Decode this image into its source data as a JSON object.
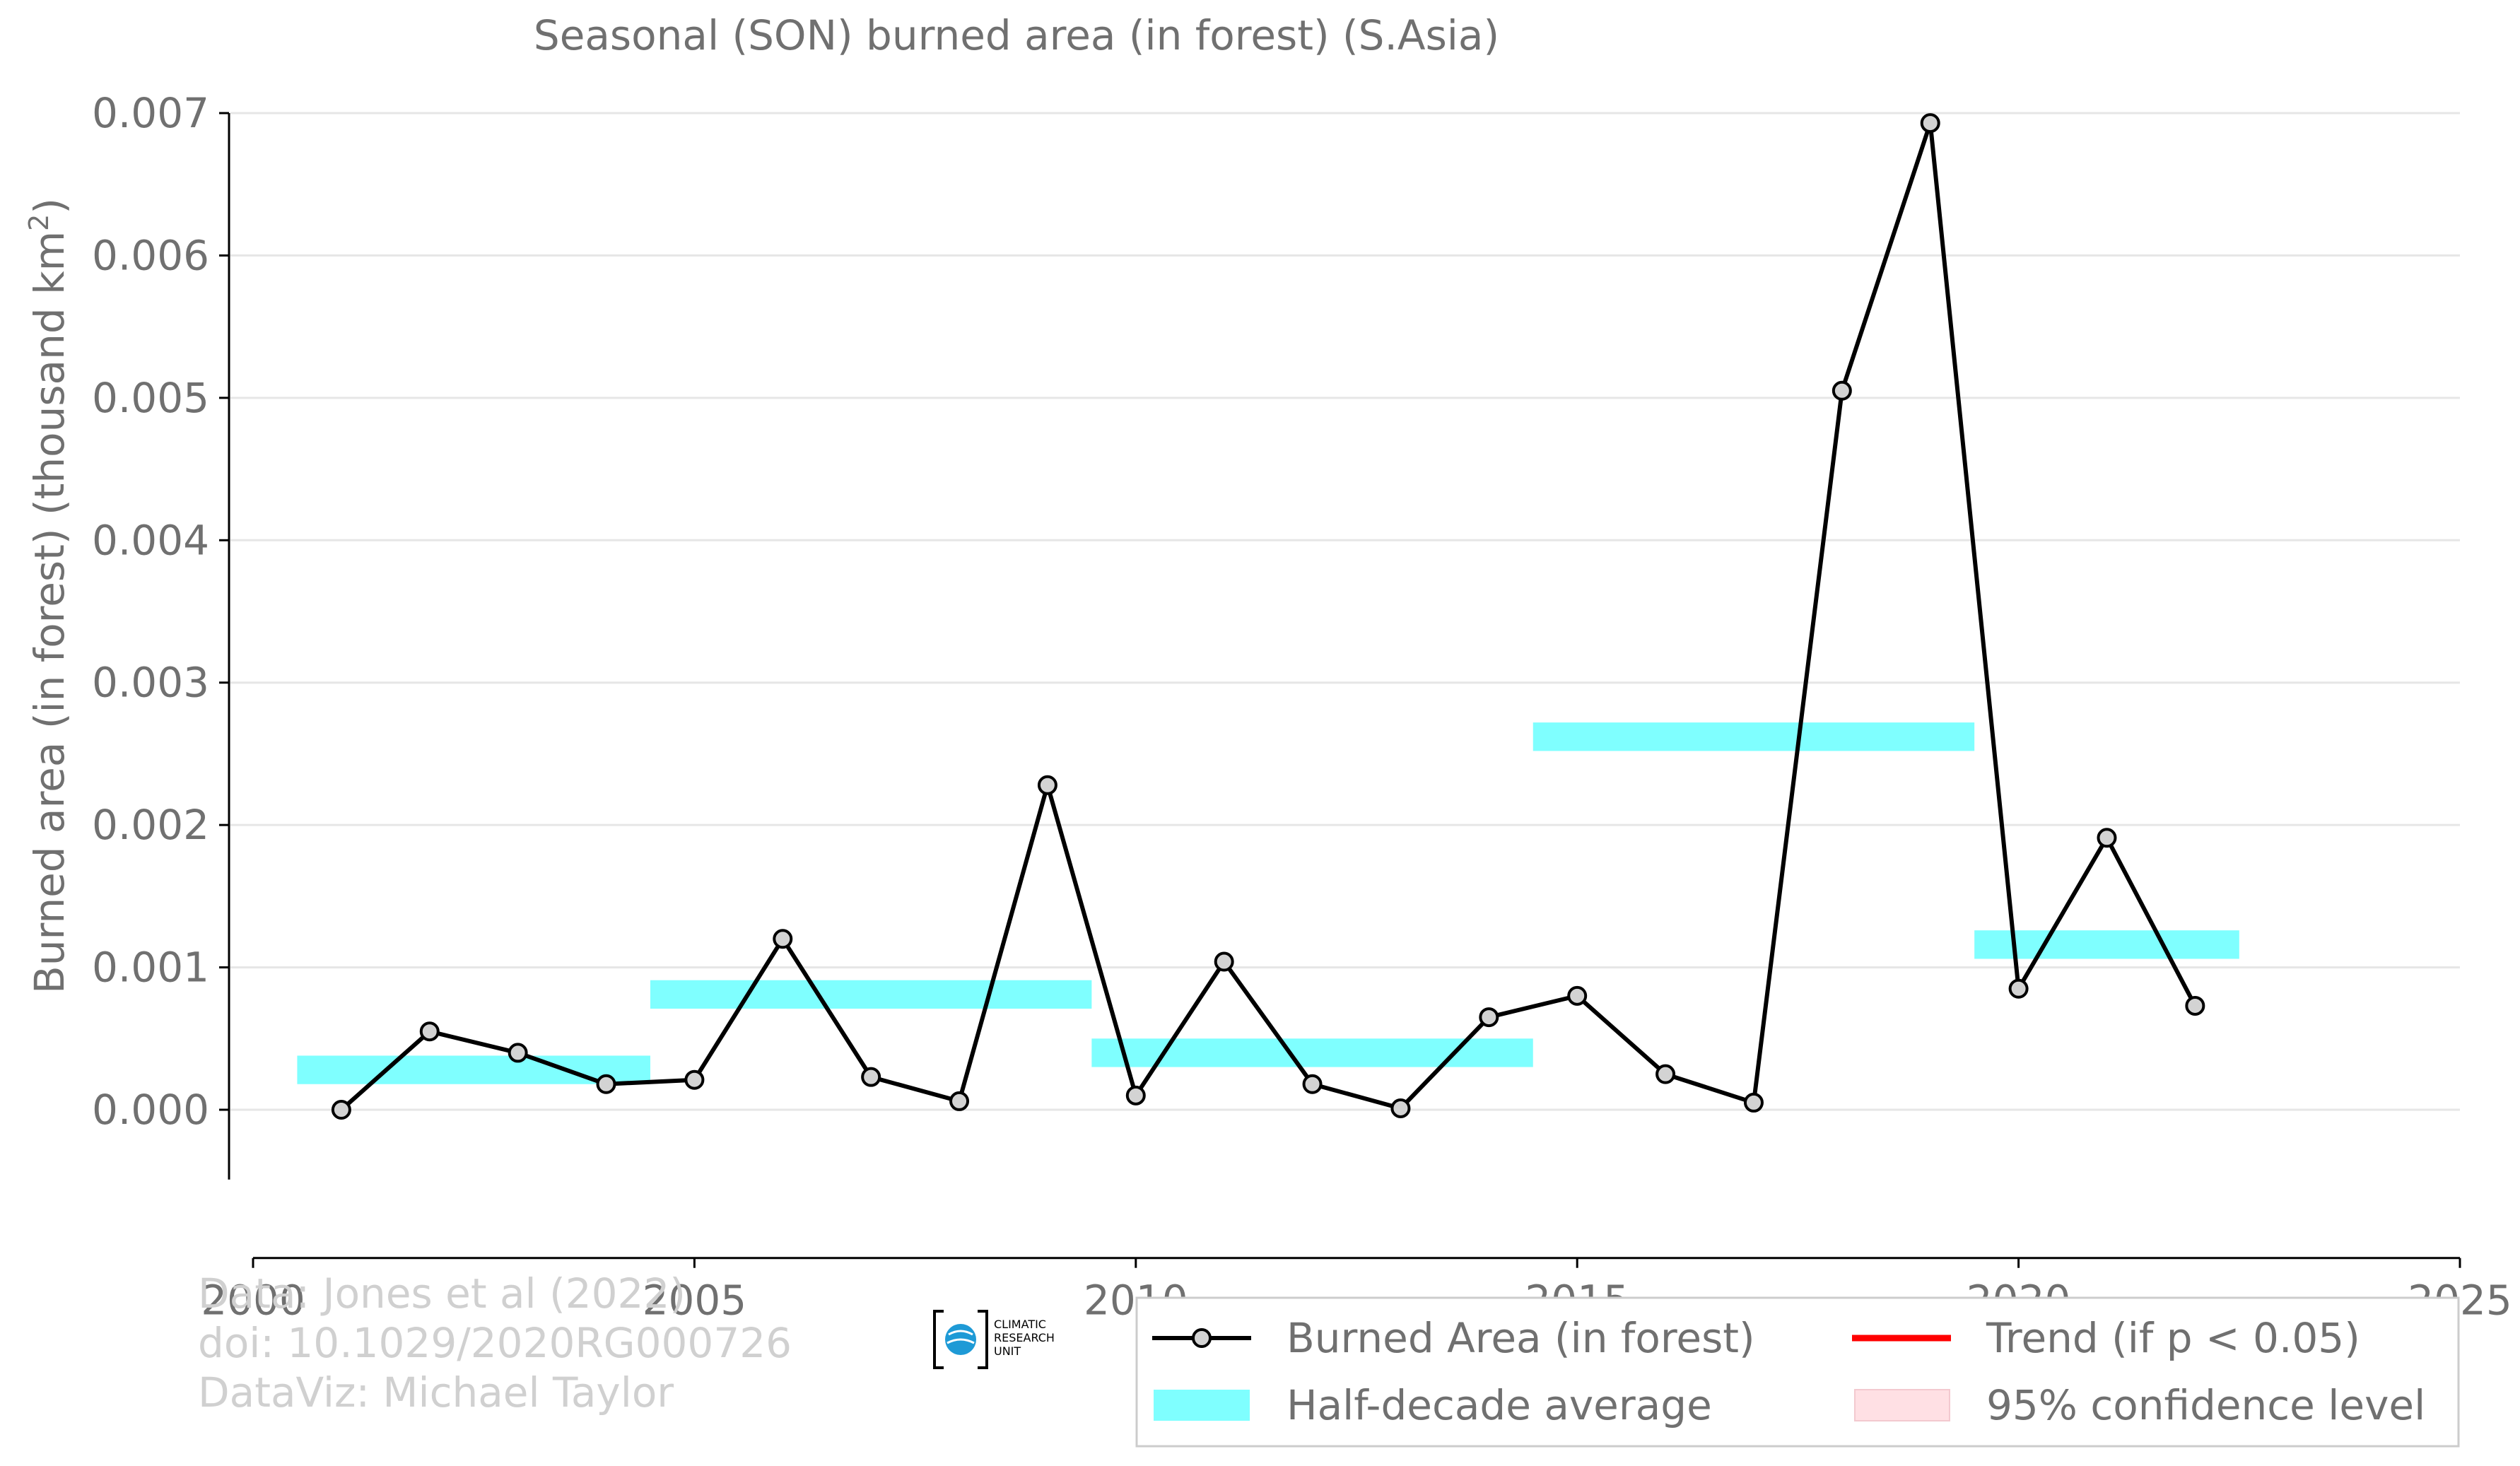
{
  "chart_data": {
    "type": "line",
    "title": "Seasonal (SON) burned area (in forest) (S.Asia)",
    "ylabel": "Burned area (in forest) (thousand km",
    "ylabel_sup": "2",
    "ylabel_close": ")",
    "xlim": [
      2000,
      2025
    ],
    "ylim": [
      -0.00052,
      0.007
    ],
    "x_ticks": [
      2000,
      2005,
      2010,
      2015,
      2020,
      2025
    ],
    "y_ticks": [
      0.0,
      0.001,
      0.002,
      0.003,
      0.004,
      0.005,
      0.006,
      0.007
    ],
    "y_tick_labels": [
      "0.000",
      "0.001",
      "0.002",
      "0.003",
      "0.004",
      "0.005",
      "0.006",
      "0.007"
    ],
    "grid": "horizontal",
    "series": [
      {
        "name": "Burned Area (in forest)",
        "color": "#000000",
        "marker_fill": "#d3d3d3",
        "x": [
          2001,
          2002,
          2003,
          2004,
          2005,
          2006,
          2007,
          2008,
          2009,
          2010,
          2011,
          2012,
          2013,
          2014,
          2015,
          2016,
          2017,
          2018,
          2019,
          2020,
          2021,
          2022
        ],
        "y": [
          0.0,
          0.00055,
          0.0004,
          0.00018,
          0.00021,
          0.0012,
          0.00023,
          6e-05,
          0.00228,
          0.0001,
          0.00104,
          0.00018,
          1e-05,
          0.00065,
          0.0008,
          0.00025,
          5e-05,
          0.00505,
          0.00693,
          0.00085,
          0.00191,
          0.00073
        ]
      }
    ],
    "half_decade_average": {
      "name": "Half-decade average",
      "color": "#7fffff",
      "segments": [
        {
          "x_start": 2000.5,
          "x_end": 2004.5,
          "y": 0.00028
        },
        {
          "x_start": 2004.5,
          "x_end": 2009.5,
          "y": 0.00081
        },
        {
          "x_start": 2009.5,
          "x_end": 2014.5,
          "y": 0.0004
        },
        {
          "x_start": 2014.5,
          "x_end": 2019.5,
          "y": 0.00262
        },
        {
          "x_start": 2019.5,
          "x_end": 2022.5,
          "y": 0.00116
        }
      ]
    },
    "legend": {
      "placement": "bottom-right",
      "entries": [
        {
          "label": "Burned Area (in forest)",
          "kind": "line-marker",
          "color": "#000000"
        },
        {
          "label": "Trend (if p < 0.05)",
          "kind": "line",
          "color": "#ff0000"
        },
        {
          "label": "Half-decade average",
          "kind": "band",
          "color": "#7fffff"
        },
        {
          "label": "95% confidence level",
          "kind": "band",
          "color": "#ffe0e4"
        }
      ]
    },
    "credits": [
      "Data: Jones et al (2022)",
      "doi: 10.1029/2020RG000726",
      "DataViz: Michael Taylor"
    ],
    "logo_text": [
      "CLIMATIC",
      "RESEARCH",
      "UNIT"
    ]
  }
}
